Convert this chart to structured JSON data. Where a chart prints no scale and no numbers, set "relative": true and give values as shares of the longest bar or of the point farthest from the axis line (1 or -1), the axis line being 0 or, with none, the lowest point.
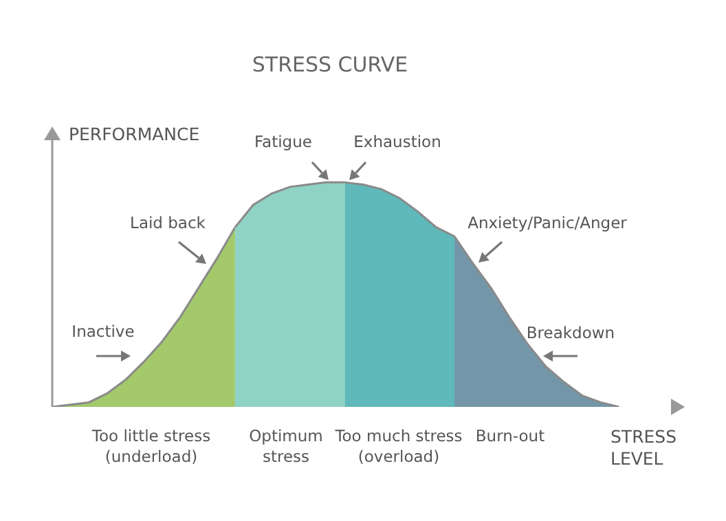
{
  "chart_data": {
    "type": "area",
    "title": "STRESS CURVE",
    "xlabel": "STRESS LEVEL",
    "ylabel": "PERFORMANCE",
    "relative": true,
    "categories": [
      null,
      null,
      null,
      null,
      null,
      null,
      null,
      null,
      null,
      null,
      null,
      null,
      null,
      null,
      null,
      null,
      null,
      null,
      null,
      null,
      null,
      null,
      null,
      null,
      null,
      null,
      null,
      null,
      null,
      null,
      null,
      null,
      null,
      null,
      null
    ],
    "series": [
      {
        "color": "#a3c96b",
        "values": [
          0,
          0.01,
          0.02,
          0.06,
          0.12,
          0.2,
          0.29,
          0.4,
          0.53,
          0.66,
          0.8,
          null,
          null,
          null,
          null,
          null,
          null,
          null,
          null,
          null,
          null,
          null,
          null,
          null,
          null,
          null,
          null,
          null,
          null,
          null,
          null,
          null,
          null,
          null,
          null
        ]
      },
      {
        "color": "#8fd3c4",
        "values": [
          null,
          null,
          null,
          null,
          null,
          null,
          null,
          null,
          null,
          null,
          0.8,
          0.9,
          0.95,
          0.98,
          0.99,
          1,
          1,
          null,
          null,
          null,
          null,
          null,
          null,
          null,
          null,
          null,
          null,
          null,
          null,
          null,
          null,
          null,
          null,
          null,
          null
        ]
      },
      {
        "color": "#5fb8b9",
        "values": [
          null,
          null,
          null,
          null,
          null,
          null,
          null,
          null,
          null,
          null,
          null,
          null,
          null,
          null,
          null,
          null,
          1,
          0.99,
          0.97,
          0.93,
          0.87,
          0.8,
          0.76,
          null,
          null,
          null,
          null,
          null,
          null,
          null,
          null,
          null,
          null,
          null,
          null
        ]
      },
      {
        "color": "#7397a8",
        "values": [
          null,
          null,
          null,
          null,
          null,
          null,
          null,
          null,
          null,
          null,
          null,
          null,
          null,
          null,
          null,
          null,
          null,
          null,
          null,
          null,
          null,
          null,
          0.76,
          0.64,
          0.53,
          0.4,
          0.28,
          0.18,
          0.11,
          0.05,
          0.02,
          0,
          null,
          null,
          null
        ]
      }
    ],
    "annotations": [
      "Inactive",
      "Laid back",
      "Fatigue",
      "Exhaustion",
      "Anxiety/Panic/Anger",
      "Breakdown",
      "Too little stress (underload)",
      "Optimum stress",
      "Too much stress (overload)",
      "Burn-out"
    ]
  }
}
